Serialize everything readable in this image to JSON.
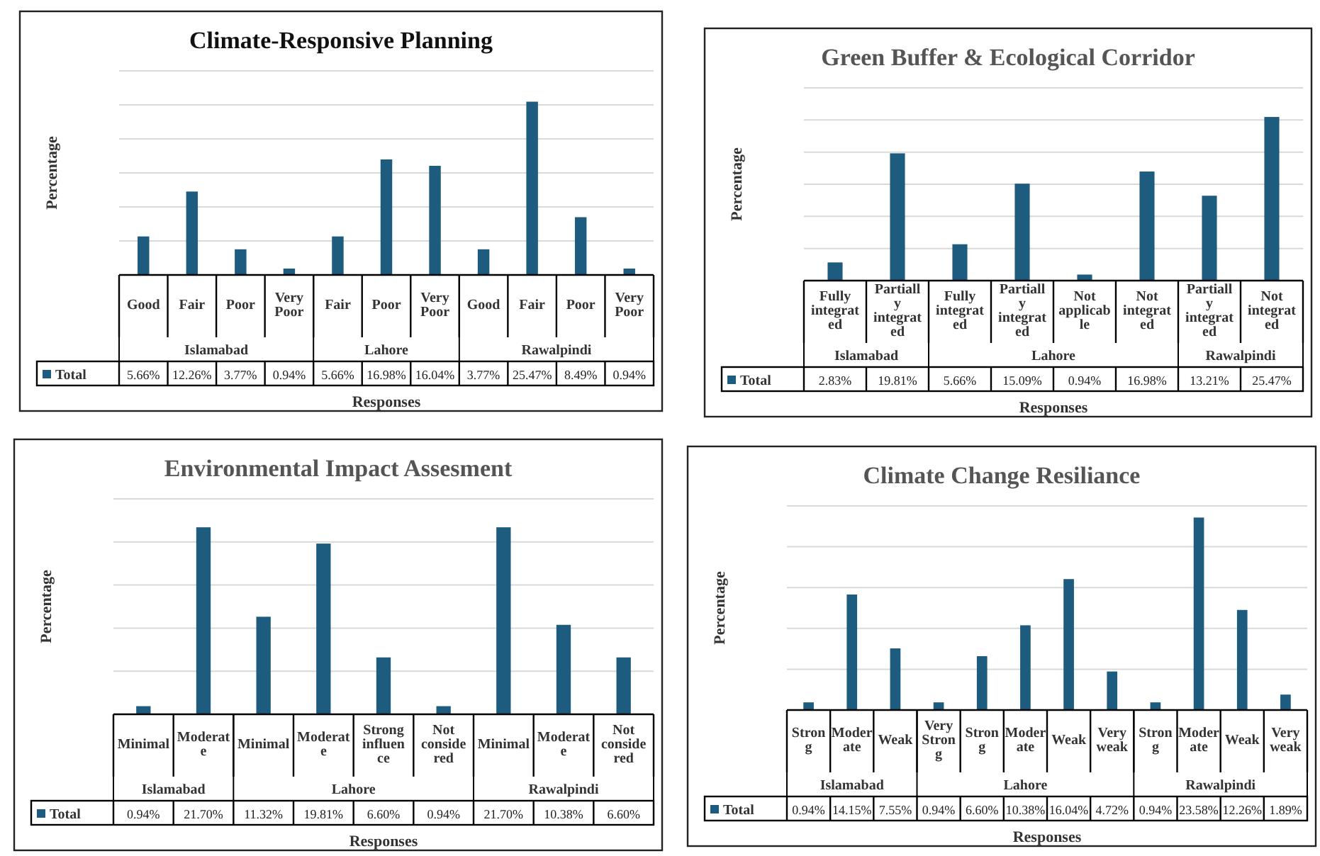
{
  "chart_data": [
    {
      "type": "bar",
      "title": "Climate-Responsive Planning",
      "ylabel": "Percentage",
      "xlabel": "Responses",
      "categories": [
        "Good",
        "Fair",
        "Poor",
        "Very Poor",
        "Fair",
        "Poor",
        "Very Poor",
        "Good",
        "Fair",
        "Poor",
        "Very Poor"
      ],
      "series": [
        {
          "name": "Total",
          "color": "#1d5c7e",
          "values": [
            5.66,
            12.26,
            3.77,
            0.94,
            5.66,
            16.98,
            16.04,
            3.77,
            25.47,
            8.49,
            0.94
          ],
          "value_labels": [
            "5.66%",
            "12.26%",
            "3.77%",
            "0.94%",
            "5.66%",
            "16.98%",
            "16.04%",
            "3.77%",
            "25.47%",
            "8.49%",
            "0.94%"
          ]
        }
      ],
      "ylim": [
        0,
        30
      ],
      "yticks": [
        {
          "value": 0,
          "label": null
        },
        {
          "value": 5,
          "label": null
        },
        {
          "value": 10,
          "label": null
        },
        {
          "value": 15,
          "label": null
        },
        {
          "value": 20,
          "label": null
        },
        {
          "value": 25,
          "label": null
        },
        {
          "value": 30,
          "label": null
        }
      ],
      "grid": "y",
      "legend": "bottom left",
      "annotations": [
        "Islamabad",
        "Lahore",
        "Rawalpindi"
      ]
    },
    {
      "type": "bar",
      "title": "Green Buffer & Ecological Corridor",
      "ylabel": "Percentage",
      "xlabel": "Responses",
      "categories": [
        "Fully integrated",
        "Partially integrated",
        "Fully integrated",
        "Partially integrated",
        "Not applicable",
        "Not integrated",
        "Partially integrated",
        "Not integrated"
      ],
      "series": [
        {
          "name": "Total",
          "color": "#1d5c7e",
          "values": [
            2.83,
            19.81,
            5.66,
            15.09,
            0.94,
            16.98,
            13.21,
            25.47
          ],
          "value_labels": [
            "2.83%",
            "19.81%",
            "5.66%",
            "15.09%",
            "0.94%",
            "16.98%",
            "13.21%",
            "25.47%"
          ]
        }
      ],
      "ylim": [
        0,
        30
      ],
      "yticks": [
        {
          "value": 0,
          "label": null
        },
        {
          "value": 5,
          "label": null
        },
        {
          "value": 10,
          "label": null
        },
        {
          "value": 15,
          "label": null
        },
        {
          "value": 20,
          "label": null
        },
        {
          "value": 25,
          "label": null
        },
        {
          "value": 30,
          "label": null
        }
      ],
      "grid": "y",
      "legend": "bottom left",
      "annotations": [
        "Islamabad",
        "Lahore",
        "Rawalpindi"
      ]
    },
    {
      "type": "bar",
      "title": "Environmental Impact Assesment",
      "ylabel": "Percentage",
      "xlabel": "Responses",
      "categories": [
        "Minimal",
        "Moderate",
        "Minimal",
        "Moderate",
        "Strong influence",
        "Not considered",
        "Minimal",
        "Moderate",
        "Not considered"
      ],
      "series": [
        {
          "name": "Total",
          "color": "#1d5c7e",
          "values": [
            0.94,
            21.7,
            11.32,
            19.81,
            6.6,
            0.94,
            21.7,
            10.38,
            6.6
          ],
          "value_labels": [
            "0.94%",
            "21.70%",
            "11.32%",
            "19.81%",
            "6.60%",
            "0.94%",
            "21.70%",
            "10.38%",
            "6.60%"
          ]
        }
      ],
      "ylim": [
        0,
        25
      ],
      "yticks": [
        {
          "value": 0,
          "label": null
        },
        {
          "value": 5,
          "label": null
        },
        {
          "value": 10,
          "label": null
        },
        {
          "value": 15,
          "label": null
        },
        {
          "value": 20,
          "label": null
        },
        {
          "value": 25,
          "label": null
        }
      ],
      "grid": "y",
      "legend": "bottom left",
      "annotations": [
        "Islamabad",
        "Lahore",
        "Rawalpindi"
      ]
    },
    {
      "type": "bar",
      "title": "Climate Change Resiliance",
      "ylabel": "Percentage",
      "xlabel": "Responses",
      "categories": [
        "Strong",
        "Moderate",
        "Weak",
        "Very Strong",
        "Strong",
        "Moderate",
        "Weak",
        "Very weak",
        "Strong",
        "Moderate",
        "Weak",
        "Very weak"
      ],
      "series": [
        {
          "name": "Total",
          "color": "#1d5c7e",
          "values": [
            0.94,
            14.15,
            7.55,
            0.94,
            6.6,
            10.38,
            16.04,
            4.72,
            0.94,
            23.58,
            12.26,
            1.89
          ],
          "value_labels": [
            "0.94%",
            "14.15%",
            "7.55%",
            "0.94%",
            "6.60%",
            "10.38%",
            "16.04%",
            "4.72%",
            "0.94%",
            "23.58%",
            "12.26%",
            "1.89%"
          ]
        }
      ],
      "ylim": [
        0,
        25
      ],
      "yticks": [
        {
          "value": 0,
          "label": null
        },
        {
          "value": 5,
          "label": null
        },
        {
          "value": 10,
          "label": null
        },
        {
          "value": 15,
          "label": null
        },
        {
          "value": 20,
          "label": null
        },
        {
          "value": 25,
          "label": null
        }
      ],
      "grid": "y",
      "legend": "bottom left",
      "annotations": [
        "Islamabad",
        "Lahore",
        "Rawalpindi"
      ]
    }
  ]
}
